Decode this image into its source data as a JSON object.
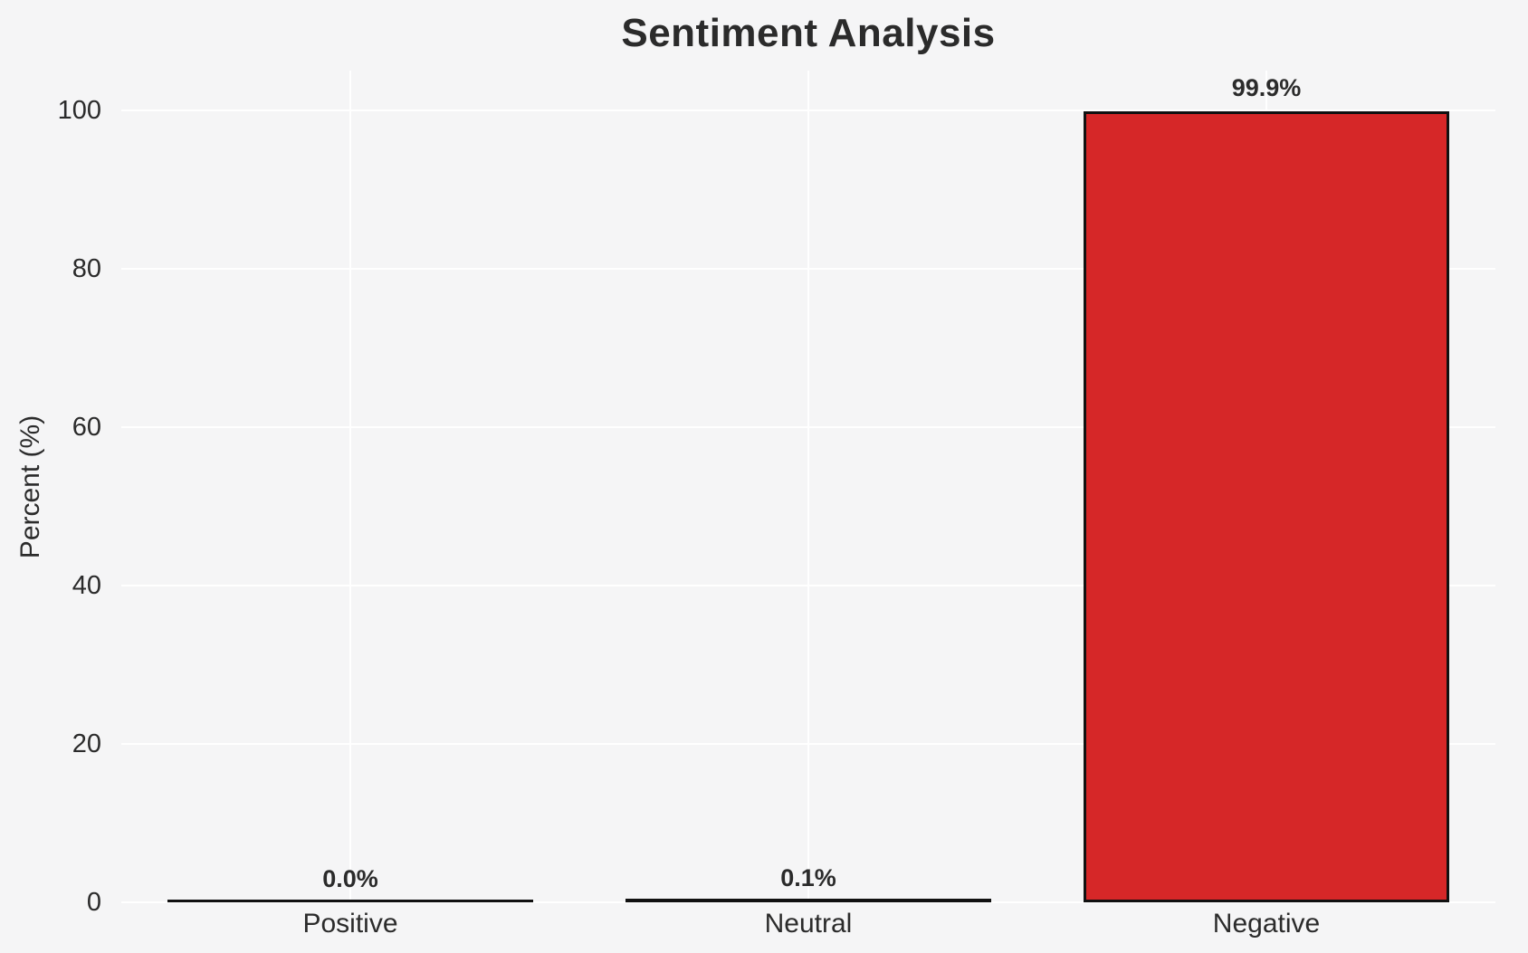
{
  "colors": {
    "background": "#f5f5f6",
    "grid": "#ffffff",
    "bar_fill": "#d62728",
    "bar_edge": "#111111",
    "text": "#2b2b2b"
  },
  "chart_data": {
    "type": "bar",
    "title": "Sentiment Analysis",
    "xlabel": "",
    "ylabel": "Percent (%)",
    "categories": [
      "Positive",
      "Neutral",
      "Negative"
    ],
    "values": [
      0.0,
      0.1,
      99.9
    ],
    "value_labels": [
      "0.0%",
      "0.1%",
      "99.9%"
    ],
    "yticks": [
      0,
      20,
      40,
      60,
      80,
      100
    ],
    "ylim": [
      0,
      105
    ],
    "grid": "horizontal and vertical white gridlines on light gray background",
    "legend": null
  }
}
